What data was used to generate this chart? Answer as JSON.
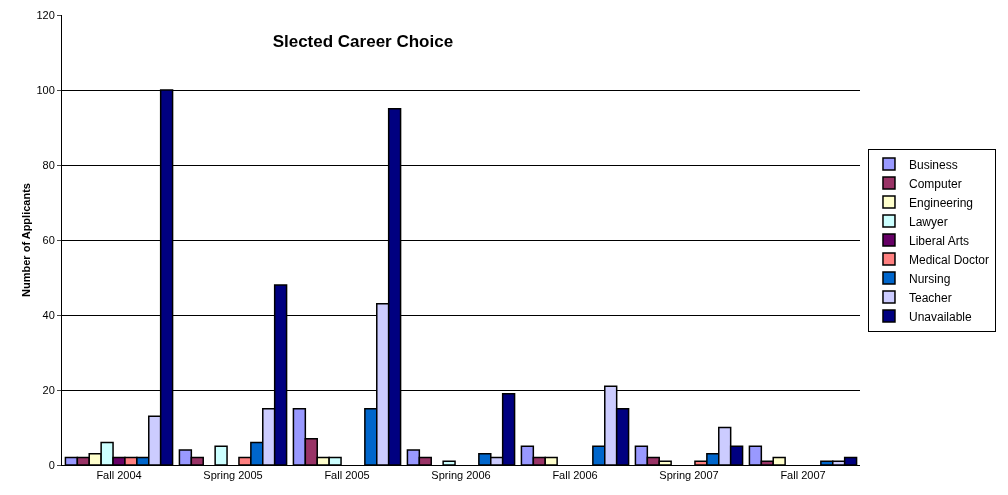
{
  "chart_data": {
    "type": "bar",
    "title": "Slected Career Choice",
    "ylabel": "Number of Applicants",
    "categories": [
      "Fall 2004",
      "Spring 2005",
      "Fall 2005",
      "Spring 2006",
      "Fall 2006",
      "Spring 2007",
      "Fall 2007"
    ],
    "series": [
      {
        "name": "Business",
        "color": "#9999ff",
        "values": [
          2,
          4,
          15,
          4,
          5,
          5,
          5
        ]
      },
      {
        "name": "Computer",
        "color": "#993366",
        "values": [
          2,
          2,
          7,
          2,
          2,
          2,
          1
        ]
      },
      {
        "name": "Engineering",
        "color": "#ffffcc",
        "values": [
          3,
          0,
          2,
          0,
          2,
          1,
          2
        ]
      },
      {
        "name": "Lawyer",
        "color": "#ccffff",
        "values": [
          6,
          5,
          2,
          1,
          0,
          0,
          0
        ]
      },
      {
        "name": "Liberal Arts",
        "color": "#660066",
        "values": [
          2,
          0,
          0,
          0,
          0,
          0,
          0
        ]
      },
      {
        "name": "Medical Doctor",
        "color": "#ff8080",
        "values": [
          2,
          2,
          0,
          0,
          0,
          1,
          0
        ]
      },
      {
        "name": "Nursing",
        "color": "#0066cc",
        "values": [
          2,
          6,
          15,
          3,
          5,
          3,
          1
        ]
      },
      {
        "name": "Teacher",
        "color": "#ccccff",
        "values": [
          13,
          15,
          43,
          2,
          21,
          10,
          1
        ]
      },
      {
        "name": "Unavailable",
        "color": "#000080",
        "values": [
          100,
          48,
          95,
          19,
          15,
          5,
          2
        ]
      }
    ],
    "ylim": [
      0,
      120
    ],
    "yticks": [
      0,
      20,
      40,
      60,
      80,
      100,
      120
    ],
    "grid": "y",
    "legend": "right"
  }
}
